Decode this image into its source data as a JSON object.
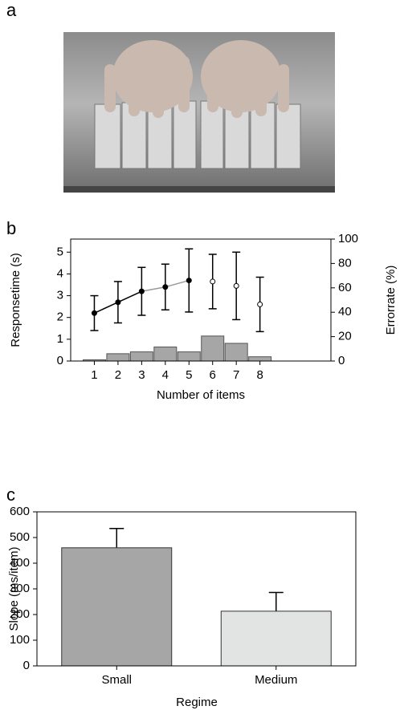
{
  "panel_labels": [
    "a",
    "b",
    "c"
  ],
  "chart_data": [
    {
      "type": "line",
      "x": [
        1,
        2,
        3,
        4,
        5,
        6,
        7,
        8
      ],
      "xlim": [
        0,
        11
      ],
      "xticks": [
        1,
        2,
        3,
        4,
        5,
        6,
        7,
        8
      ],
      "xlabel": "Number of items",
      "ylabel": "Responsetime (s)",
      "y2label": "Errorrate (%)",
      "ylim": [
        0,
        5.6
      ],
      "yticks": [
        0,
        1,
        2,
        3,
        4,
        5
      ],
      "y2lim": [
        0,
        100
      ],
      "y2ticks": [
        0,
        20,
        40,
        60,
        80,
        100
      ],
      "series": [
        {
          "type": "bar",
          "axis": "y2",
          "color": "#a6a6a6",
          "values": [
            1,
            6,
            7.5,
            11.5,
            7.5,
            20.5,
            14.5,
            3.5
          ]
        },
        {
          "type": "line",
          "color": "#000000",
          "values": [
            2.2,
            2.7,
            3.2,
            3.4,
            3.7,
            3.65,
            3.45,
            2.6
          ],
          "errors": [
            0.8,
            0.95,
            1.1,
            1.05,
            1.45,
            1.25,
            1.55,
            1.25
          ],
          "filled": [
            true,
            true,
            true,
            true,
            true,
            false,
            false,
            false
          ],
          "segment_colors": [
            "#000000",
            "#000000",
            "#999999",
            "#999999"
          ]
        }
      ]
    },
    {
      "type": "bar",
      "categories": [
        "Small",
        "Medium"
      ],
      "values": [
        460,
        213
      ],
      "errors": [
        75,
        73
      ],
      "colors": [
        "#a6a6a6",
        "#e2e4e4"
      ],
      "ylim": [
        0,
        600
      ],
      "yticks": [
        0,
        100,
        200,
        300,
        400,
        500,
        600
      ],
      "xlabel": "Regime",
      "ylabel": "Slope (ms/item)"
    }
  ]
}
